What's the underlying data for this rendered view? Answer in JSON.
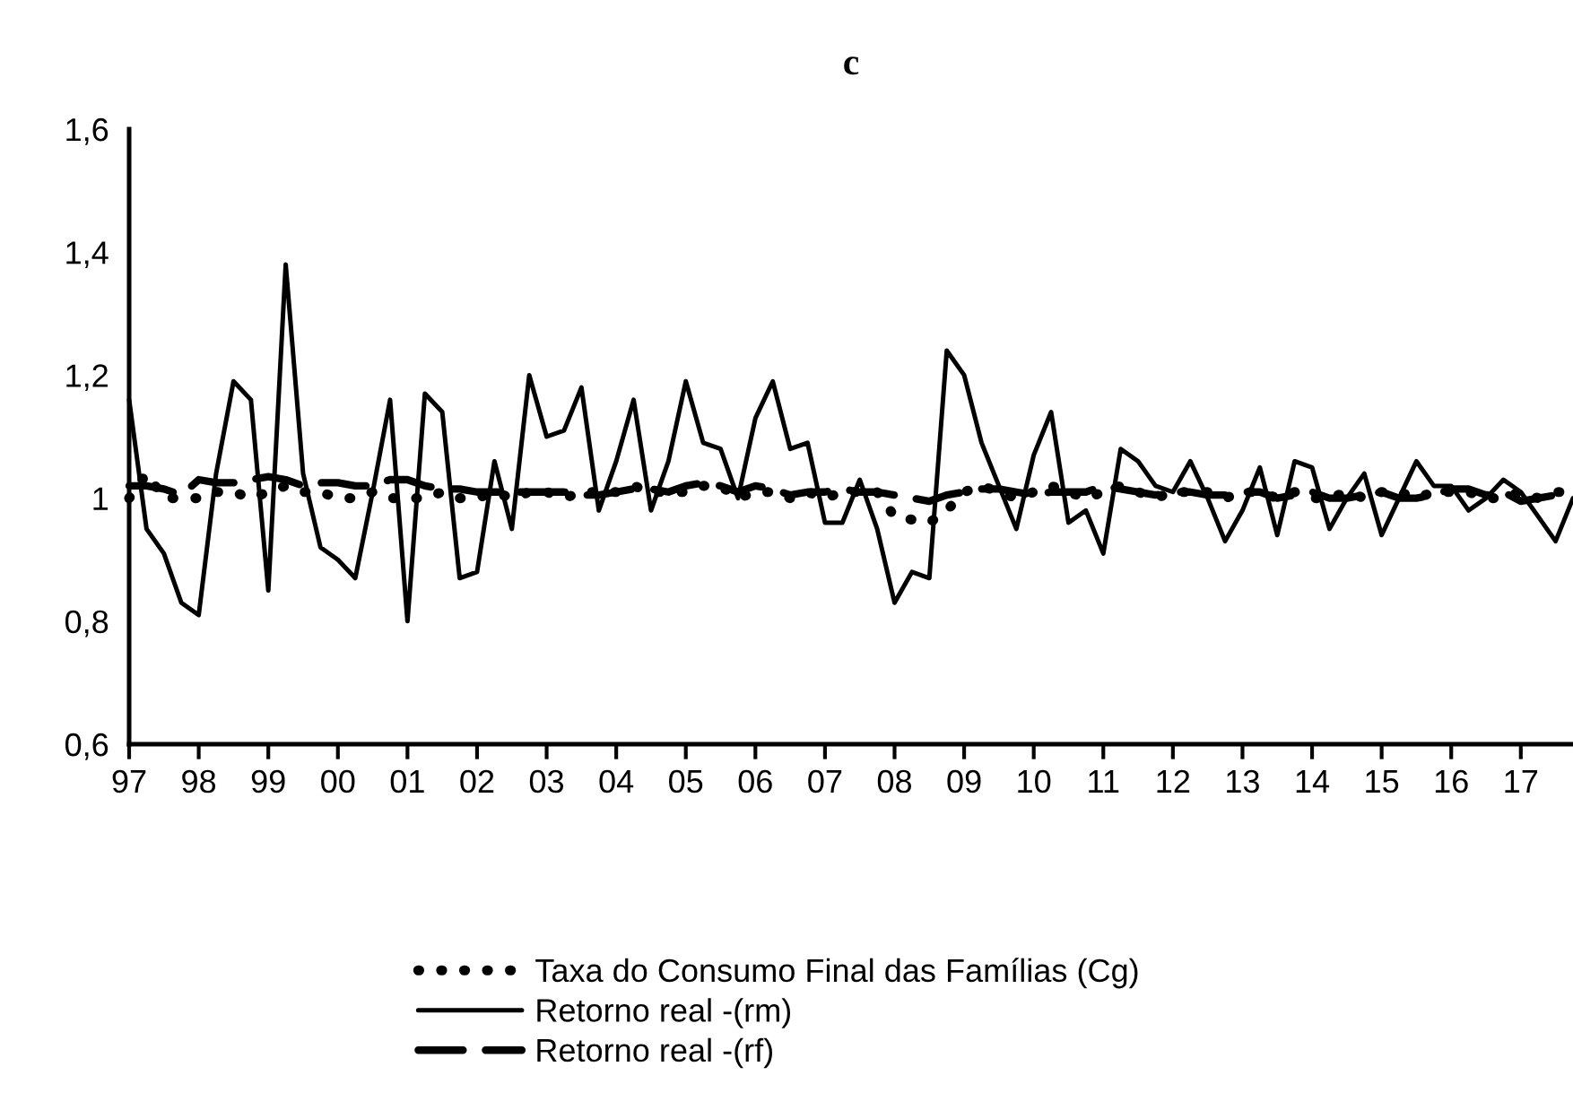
{
  "chart_data": {
    "type": "line",
    "title": "c",
    "categories": [
      "97",
      null,
      null,
      null,
      "98",
      null,
      null,
      null,
      "99",
      null,
      null,
      null,
      "00",
      null,
      null,
      null,
      "01",
      null,
      null,
      null,
      "02",
      null,
      null,
      null,
      "03",
      null,
      null,
      null,
      "04",
      null,
      null,
      null,
      "05",
      null,
      null,
      null,
      "06",
      null,
      null,
      null,
      "07",
      null,
      null,
      null,
      "08",
      null,
      null,
      null,
      "09",
      null,
      null,
      null,
      "10",
      null,
      null,
      null,
      "11",
      null,
      null,
      null,
      "12",
      null,
      null,
      null,
      "13",
      null,
      null,
      null,
      "14",
      null,
      null,
      null,
      "15",
      null,
      null,
      null,
      "16",
      null,
      null,
      null,
      "17",
      null,
      null,
      null
    ],
    "series": [
      {
        "name": "Taxa do Consumo Final das Famílias (Cg)",
        "color": "#000000",
        "line_style": "dotted",
        "values": [
          1.0,
          1.04,
          1.0,
          1.0,
          1.0,
          1.01,
          1.01,
          1.0,
          1.01,
          1.02,
          1.01,
          1.01,
          1.0,
          1.0,
          1.01,
          1.0,
          1.0,
          1.0,
          1.01,
          1.0,
          1.0,
          1.01,
          1.0,
          1.01,
          1.01,
          1.0,
          1.01,
          1.01,
          1.01,
          1.02,
          1.01,
          1.01,
          1.01,
          1.02,
          1.02,
          1.0,
          1.01,
          1.01,
          1.0,
          1.01,
          1.0,
          1.01,
          1.01,
          1.01,
          0.97,
          0.965,
          0.96,
          0.98,
          1.01,
          1.02,
          1.01,
          1.0,
          1.01,
          1.02,
          1.01,
          1.0,
          1.01,
          1.02,
          1.01,
          1.0,
          1.01,
          1.01,
          1.01,
          1.0,
          1.01,
          1.01,
          1.0,
          1.01,
          1.0,
          1.0,
          1.01,
          1.0,
          1.01,
          1.01,
          1.0,
          1.01,
          1.01,
          1.01,
          1.0,
          1.0,
          1.01,
          1.0,
          1.01,
          1.01
        ]
      },
      {
        "name": "Retorno real -(rm)",
        "color": "#000000",
        "line_style": "solid",
        "values": [
          1.16,
          0.95,
          0.91,
          0.83,
          0.81,
          1.04,
          1.19,
          1.16,
          0.85,
          1.38,
          1.04,
          0.92,
          0.9,
          0.87,
          1.01,
          1.16,
          0.8,
          1.17,
          1.14,
          0.87,
          0.88,
          1.06,
          0.95,
          1.2,
          1.1,
          1.11,
          1.18,
          0.98,
          1.06,
          1.16,
          0.98,
          1.06,
          1.19,
          1.09,
          1.08,
          1.0,
          1.13,
          1.19,
          1.08,
          1.09,
          0.96,
          0.96,
          1.03,
          0.95,
          0.83,
          0.88,
          0.87,
          1.24,
          1.2,
          1.09,
          1.02,
          0.95,
          1.07,
          1.14,
          0.96,
          0.98,
          0.91,
          1.08,
          1.06,
          1.02,
          1.01,
          1.06,
          1.0,
          0.93,
          0.98,
          1.05,
          0.94,
          1.06,
          1.05,
          0.95,
          1.0,
          1.04,
          0.94,
          1.0,
          1.06,
          1.02,
          1.02,
          0.98,
          1.0,
          1.03,
          1.01,
          0.97,
          0.93,
          1.0
        ]
      },
      {
        "name": "Retorno real -(rf)",
        "color": "#000000",
        "line_style": "dashed",
        "values": [
          1.02,
          1.02,
          1.015,
          1.005,
          1.03,
          1.025,
          1.025,
          1.03,
          1.035,
          1.03,
          1.02,
          1.025,
          1.025,
          1.02,
          1.02,
          1.03,
          1.03,
          1.02,
          1.015,
          1.015,
          1.01,
          1.01,
          1.01,
          1.01,
          1.01,
          1.01,
          1.005,
          1.005,
          1.01,
          1.015,
          1.015,
          1.01,
          1.02,
          1.025,
          1.02,
          1.01,
          1.02,
          1.015,
          1.005,
          1.01,
          1.01,
          1.015,
          1.01,
          1.01,
          1.005,
          1.0,
          0.995,
          1.005,
          1.01,
          1.015,
          1.015,
          1.01,
          1.005,
          1.01,
          1.01,
          1.01,
          1.02,
          1.015,
          1.01,
          1.005,
          1.01,
          1.01,
          1.005,
          1.005,
          1.01,
          1.01,
          1.0,
          1.005,
          1.01,
          1.0,
          1.0,
          1.005,
          1.01,
          1.0,
          1.0,
          1.005,
          1.015,
          1.015,
          1.005,
          1.01,
          0.995,
          1.0,
          1.005,
          1.01
        ]
      }
    ],
    "ylim": [
      0.6,
      1.6
    ],
    "yticks": [
      {
        "value": 0.6,
        "label": "0,6"
      },
      {
        "value": 0.8,
        "label": "0,8"
      },
      {
        "value": 1,
        "label": "1"
      },
      {
        "value": 1.2,
        "label": "1,2"
      },
      {
        "value": 1.4,
        "label": "1,4"
      },
      {
        "value": 1.6,
        "label": "1,6"
      }
    ],
    "grid": false,
    "legend": "bottom",
    "marker": "none"
  }
}
